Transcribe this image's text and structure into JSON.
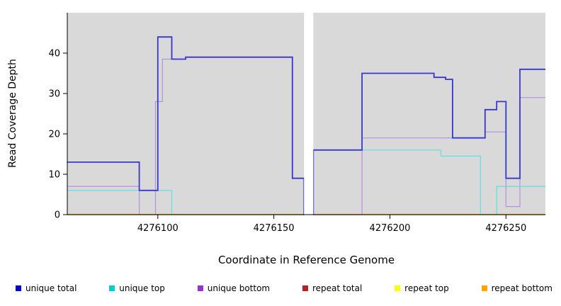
{
  "chart_data": {
    "type": "line",
    "subtype": "step-coverage",
    "title": "",
    "xlabel": "Coordinate in Reference Genome",
    "ylabel": "Read Coverage Depth",
    "xlim": [
      4276061,
      4276267
    ],
    "ylim": [
      0,
      50
    ],
    "x_ticks": [
      4276100,
      4276150,
      4276200,
      4276250
    ],
    "y_ticks": [
      0,
      10,
      20,
      30,
      40
    ],
    "panel_bg": "#d9d9d9",
    "grid": "off",
    "legend_position": "bottom",
    "gap_region": {
      "x_start": 4276163,
      "x_end": 4276167
    },
    "series": [
      {
        "name": "repeat total",
        "color": "#b22222",
        "points": [
          [
            4276061,
            0
          ]
        ]
      },
      {
        "name": "repeat top",
        "color": "#ffff00",
        "points": [
          [
            4276061,
            0
          ]
        ]
      },
      {
        "name": "unique bottom",
        "color": "#b791de",
        "points": [
          [
            4276061,
            7
          ],
          [
            4276092,
            0
          ],
          [
            4276099,
            28
          ],
          [
            4276102,
            38.5
          ],
          [
            4276112,
            39
          ],
          [
            4276158,
            9
          ],
          [
            4276163,
            0
          ],
          [
            4276167,
            0
          ],
          [
            4276188,
            19
          ],
          [
            4276241,
            20.5
          ],
          [
            4276250,
            2
          ],
          [
            4276256,
            29
          ]
        ]
      },
      {
        "name": "unique top",
        "color": "#63dede",
        "points": [
          [
            4276061,
            6
          ],
          [
            4276106,
            0
          ],
          [
            4276163,
            0
          ],
          [
            4276167,
            16
          ],
          [
            4276222,
            14.5
          ],
          [
            4276239,
            0
          ],
          [
            4276246,
            7
          ]
        ]
      },
      {
        "name": "repeat bottom",
        "color": "#ffa500",
        "points": [
          [
            4276061,
            0
          ]
        ]
      },
      {
        "name": "unique total",
        "color": "#3737d0",
        "points": [
          [
            4276061,
            13
          ],
          [
            4276092,
            6
          ],
          [
            4276100,
            44
          ],
          [
            4276106,
            38.5
          ],
          [
            4276112,
            39
          ],
          [
            4276158,
            9
          ],
          [
            4276163,
            0
          ],
          [
            4276167,
            16
          ],
          [
            4276188,
            35
          ],
          [
            4276219,
            34
          ],
          [
            4276224,
            33.5
          ],
          [
            4276227,
            19
          ],
          [
            4276241,
            26
          ],
          [
            4276246,
            28
          ],
          [
            4276250,
            9
          ],
          [
            4276256,
            36
          ]
        ]
      }
    ],
    "legend": [
      {
        "label": "unique total",
        "color": "#0000cd"
      },
      {
        "label": "unique top",
        "color": "#00cdcd"
      },
      {
        "label": "unique bottom",
        "color": "#9932cc"
      },
      {
        "label": "repeat total",
        "color": "#b22222"
      },
      {
        "label": "repeat top",
        "color": "#ffff00"
      },
      {
        "label": "repeat bottom",
        "color": "#ffa500"
      }
    ]
  }
}
